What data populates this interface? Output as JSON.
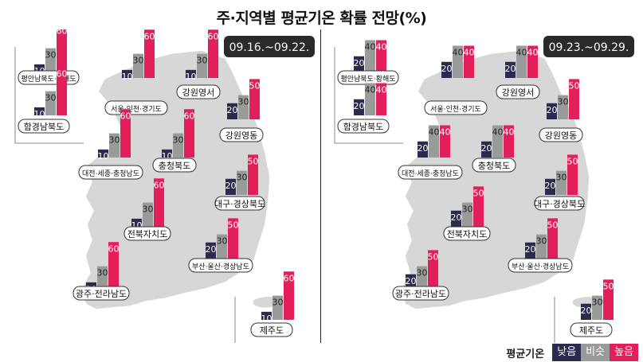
{
  "title": "주·지역별 평균기온 확률 전망(%)",
  "colors": {
    "low": "#2b2a4f",
    "similar": "#9a9a9a",
    "high": "#e21f5a",
    "map": "#d7d7d7"
  },
  "legend": {
    "title": "평균기온",
    "low": "낮음",
    "similar": "비슷",
    "high": "높음"
  },
  "chart_data": [
    {
      "type": "bar",
      "title": "09.16.~09.22.",
      "series_names": [
        "낮음",
        "비슷",
        "높음"
      ],
      "regions": [
        {
          "name": "평안남북도·황해도",
          "values": [
            10,
            30,
            60
          ]
        },
        {
          "name": "함경남북도",
          "values": [
            10,
            30,
            60
          ]
        },
        {
          "name": "서울·인천·경기도",
          "values": [
            10,
            30,
            60
          ]
        },
        {
          "name": "강원영서",
          "values": [
            10,
            30,
            60
          ]
        },
        {
          "name": "강원영동",
          "values": [
            20,
            30,
            50
          ]
        },
        {
          "name": "대전·세종·충청남도",
          "values": [
            10,
            30,
            60
          ]
        },
        {
          "name": "충청북도",
          "values": [
            10,
            30,
            60
          ]
        },
        {
          "name": "대구·경상북도",
          "values": [
            20,
            30,
            50
          ]
        },
        {
          "name": "전북자치도",
          "values": [
            10,
            30,
            60
          ]
        },
        {
          "name": "부산·울산·경상남도",
          "values": [
            20,
            30,
            50
          ]
        },
        {
          "name": "광주·전라남도",
          "values": [
            10,
            30,
            60
          ]
        },
        {
          "name": "제주도",
          "values": [
            10,
            30,
            60
          ]
        }
      ]
    },
    {
      "type": "bar",
      "title": "09.23.~09.29.",
      "series_names": [
        "낮음",
        "비슷",
        "높음"
      ],
      "regions": [
        {
          "name": "평안남북도·황해도",
          "values": [
            20,
            40,
            40
          ]
        },
        {
          "name": "함경남북도",
          "values": [
            20,
            40,
            40
          ]
        },
        {
          "name": "서울·인천·경기도",
          "values": [
            20,
            40,
            40
          ]
        },
        {
          "name": "강원영서",
          "values": [
            20,
            40,
            40
          ]
        },
        {
          "name": "강원영동",
          "values": [
            20,
            30,
            50
          ]
        },
        {
          "name": "대전·세종·충청남도",
          "values": [
            20,
            40,
            40
          ]
        },
        {
          "name": "충청북도",
          "values": [
            20,
            40,
            40
          ]
        },
        {
          "name": "대구·경상북도",
          "values": [
            20,
            30,
            50
          ]
        },
        {
          "name": "전북자치도",
          "values": [
            20,
            30,
            50
          ]
        },
        {
          "name": "부산·울산·경상남도",
          "values": [
            20,
            30,
            50
          ]
        },
        {
          "name": "광주·전라남도",
          "values": [
            20,
            30,
            50
          ]
        },
        {
          "name": "제주도",
          "values": [
            20,
            30,
            50
          ]
        }
      ]
    }
  ]
}
